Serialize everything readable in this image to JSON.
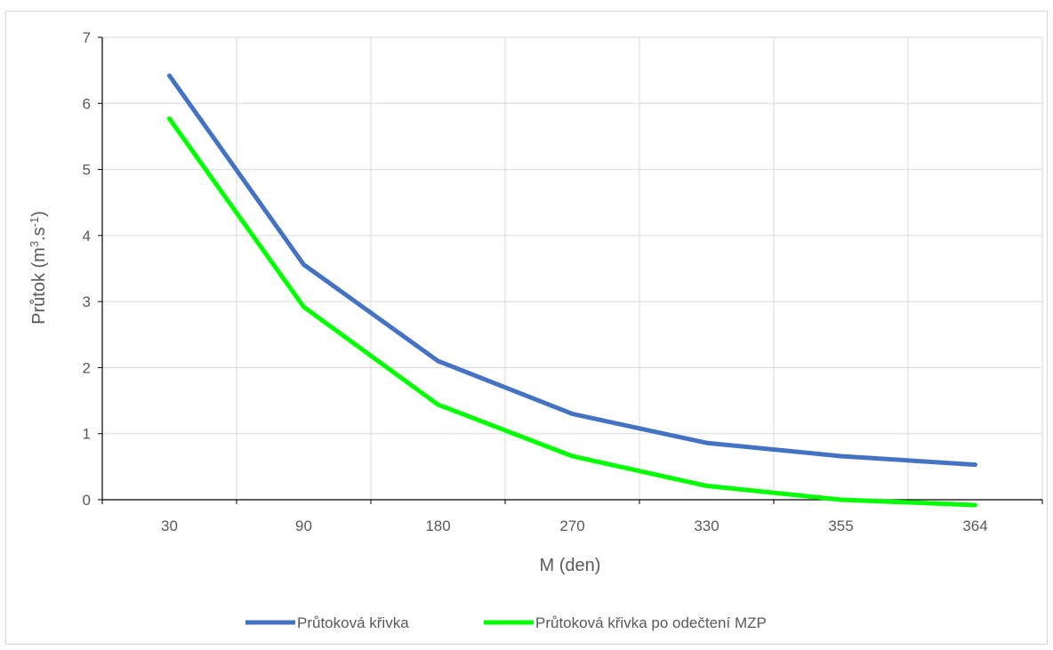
{
  "chart_data": {
    "type": "line",
    "xlabel": "M (den)",
    "ylabel": {
      "main": "Průtok (m",
      "sup1": "3",
      "mid": ".s",
      "sup2": "-1",
      "end": ")"
    },
    "categories": [
      "30",
      "90",
      "180",
      "270",
      "330",
      "355",
      "364"
    ],
    "ylim": [
      0,
      7
    ],
    "yticks": [
      "0",
      "1",
      "2",
      "3",
      "4",
      "5",
      "6",
      "7"
    ],
    "grid": true,
    "legend_position": "bottom",
    "series": [
      {
        "name": "Průtoková křivka",
        "color": "#4472c4",
        "values": [
          6.42,
          3.56,
          2.1,
          1.3,
          0.86,
          0.66,
          0.53
        ]
      },
      {
        "name": "Průtoková křivka po odečtení MZP",
        "color": "#00ff00",
        "values": [
          5.77,
          2.92,
          1.44,
          0.66,
          0.21,
          0.0,
          -0.08
        ]
      }
    ]
  }
}
